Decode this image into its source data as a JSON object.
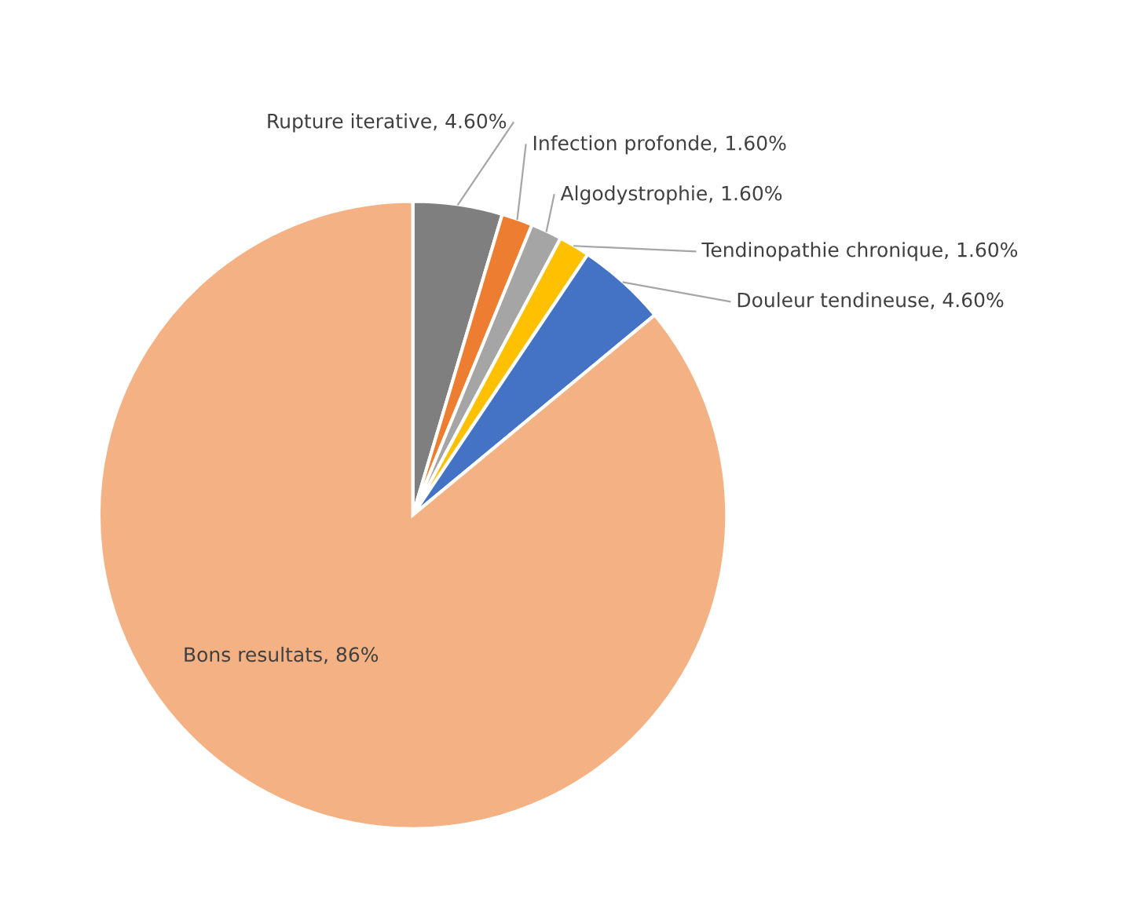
{
  "chart_data": {
    "type": "pie",
    "categories": [
      "Rupture iterative",
      "Infection profonde",
      "Algodystrophie",
      "Tendinopathie chronique",
      "Douleur tendineuse",
      "Bons resultats"
    ],
    "values": [
      4.6,
      1.6,
      1.6,
      1.6,
      4.6,
      86
    ],
    "value_labels": [
      "4.60%",
      "1.60%",
      "1.60%",
      "1.60%",
      "4.60%",
      "86%"
    ],
    "colors": [
      "#7f7f7f",
      "#ed7d31",
      "#a5a5a5",
      "#ffc000",
      "#4472c4",
      "#f4b183"
    ],
    "legend": false
  }
}
